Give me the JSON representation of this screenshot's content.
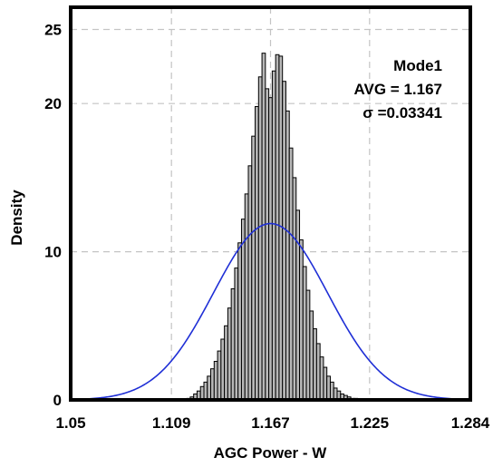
{
  "chart_data": {
    "type": "bar",
    "title": "",
    "xlabel": "AGC Power - W",
    "ylabel": "Density",
    "xlim": [
      1.05,
      1.284
    ],
    "ylim": [
      0,
      26.5
    ],
    "x_ticks": [
      "1.05",
      "1.109",
      "1.167",
      "1.225",
      "1.284"
    ],
    "y_ticks": [
      "0",
      "10",
      "20",
      "25"
    ],
    "grid": true,
    "annotations": [
      "Mode1",
      "AVG = 1.167",
      "σ =0.03341"
    ],
    "bar_color": "#b8b8b8",
    "curve_color": "#1f2fd6",
    "series": [
      {
        "kind": "histogram",
        "bin_width": 0.002,
        "x": [
          1.119,
          1.121,
          1.123,
          1.125,
          1.127,
          1.129,
          1.131,
          1.133,
          1.135,
          1.137,
          1.139,
          1.141,
          1.143,
          1.145,
          1.147,
          1.149,
          1.151,
          1.153,
          1.155,
          1.157,
          1.159,
          1.161,
          1.163,
          1.165,
          1.167,
          1.169,
          1.171,
          1.173,
          1.175,
          1.177,
          1.179,
          1.181,
          1.183,
          1.185,
          1.187,
          1.189,
          1.191,
          1.193,
          1.195,
          1.197,
          1.199,
          1.201,
          1.203,
          1.205,
          1.207,
          1.209,
          1.211,
          1.213,
          1.215,
          1.217
        ],
        "values": [
          0.1,
          0.2,
          0.4,
          0.6,
          0.9,
          1.2,
          1.6,
          2.1,
          2.6,
          3.3,
          4.1,
          5.0,
          6.2,
          7.5,
          8.9,
          10.6,
          12.2,
          13.9,
          15.8,
          17.8,
          19.8,
          21.8,
          23.4,
          21.0,
          20.4,
          22.2,
          23.3,
          23.2,
          21.5,
          19.5,
          17.0,
          15.0,
          12.8,
          10.8,
          9.0,
          7.4,
          6.0,
          4.8,
          3.8,
          2.9,
          2.2,
          1.6,
          1.2,
          0.8,
          0.6,
          0.4,
          0.3,
          0.2,
          0.1,
          0.1
        ]
      },
      {
        "kind": "normal-fit",
        "mean": 1.167,
        "sigma": 0.03341,
        "peak": 11.9
      }
    ]
  }
}
